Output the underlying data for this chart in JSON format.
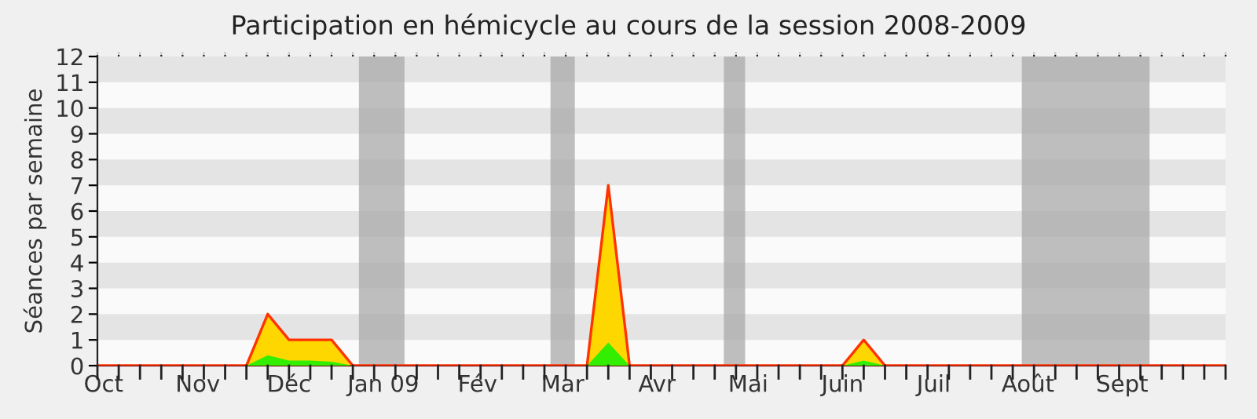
{
  "chart_data": {
    "type": "area",
    "title": "Participation en hémicycle au cours de la session 2008-2009",
    "ylabel": "Séances par semaine",
    "x": [
      "2008-09-29",
      "2008-10-06",
      "2008-10-13",
      "2008-10-20",
      "2008-10-27",
      "2008-11-03",
      "2008-11-10",
      "2008-11-17",
      "2008-11-24",
      "2008-12-01",
      "2008-12-08",
      "2008-12-15",
      "2008-12-22",
      "2008-12-29",
      "2009-01-05",
      "2009-01-12",
      "2009-01-19",
      "2009-01-26",
      "2009-02-02",
      "2009-02-09",
      "2009-02-16",
      "2009-02-23",
      "2009-03-02",
      "2009-03-09",
      "2009-03-16",
      "2009-03-23",
      "2009-03-30",
      "2009-04-06",
      "2009-04-13",
      "2009-04-20",
      "2009-04-27",
      "2009-05-04",
      "2009-05-11",
      "2009-05-18",
      "2009-05-25",
      "2009-06-01",
      "2009-06-08",
      "2009-06-15",
      "2009-06-22",
      "2009-06-29",
      "2009-07-06",
      "2009-07-13",
      "2009-07-20",
      "2009-07-27",
      "2009-08-03",
      "2009-08-10",
      "2009-08-17",
      "2009-08-24",
      "2009-08-31",
      "2009-09-07",
      "2009-09-14",
      "2009-09-21",
      "2009-09-28",
      "2009-10-05"
    ],
    "series": [
      {
        "color": "#ffd700",
        "values": [
          0,
          0,
          0,
          0,
          0,
          0,
          0,
          0,
          2,
          1,
          1,
          1,
          0,
          0,
          0,
          0,
          0,
          0,
          0,
          0,
          0,
          0,
          0,
          0,
          7,
          0,
          0,
          0,
          0,
          0,
          0,
          0,
          0,
          0,
          0,
          0,
          1,
          0,
          0,
          0,
          0,
          0,
          0,
          0,
          0,
          0,
          0,
          0,
          0,
          0,
          0,
          0,
          0,
          0
        ]
      },
      {
        "color": "#33ee00",
        "values": [
          0,
          0,
          0,
          0,
          0,
          0,
          0,
          0,
          0.4,
          0.2,
          0.2,
          0.15,
          0,
          0,
          0,
          0,
          0,
          0,
          0,
          0,
          0,
          0,
          0,
          0,
          0.9,
          0,
          0,
          0,
          0,
          0,
          0,
          0,
          0,
          0,
          0,
          0,
          0.2,
          0,
          0,
          0,
          0,
          0,
          0,
          0,
          0,
          0,
          0,
          0,
          0,
          0,
          0,
          0,
          0,
          0
        ]
      }
    ],
    "xlim": [
      "2008-09-29",
      "2009-10-05"
    ],
    "xticks": [
      {
        "value": "2008-10-01",
        "label": "Oct"
      },
      {
        "value": "2008-11-01",
        "label": "Nov"
      },
      {
        "value": "2008-12-01",
        "label": "Déc"
      },
      {
        "value": "2009-01-01",
        "label": "Jan 09"
      },
      {
        "value": "2009-02-01",
        "label": "Fév"
      },
      {
        "value": "2009-03-01",
        "label": "Mar"
      },
      {
        "value": "2009-04-01",
        "label": "Avr"
      },
      {
        "value": "2009-05-01",
        "label": "Mai"
      },
      {
        "value": "2009-06-01",
        "label": "Juin"
      },
      {
        "value": "2009-07-01",
        "label": "Juil"
      },
      {
        "value": "2009-08-01",
        "label": "Août"
      },
      {
        "value": "2009-09-01",
        "label": "Sept"
      }
    ],
    "ylim": [
      0,
      12
    ],
    "yticks": [
      0,
      1,
      2,
      3,
      4,
      5,
      6,
      7,
      8,
      9,
      10,
      11,
      12
    ],
    "bands": [
      {
        "axis": "x",
        "from": "2008-12-24",
        "to": "2009-01-08",
        "color": "#aaaaaa"
      },
      {
        "axis": "x",
        "from": "2009-02-25",
        "to": "2009-03-05",
        "color": "#aaaaaa"
      },
      {
        "axis": "x",
        "from": "2009-04-23",
        "to": "2009-04-30",
        "color": "#aaaaaa"
      },
      {
        "axis": "x",
        "from": "2009-07-30",
        "to": "2009-09-10",
        "color": "#aaaaaa"
      }
    ],
    "grid": false,
    "legend": false
  }
}
